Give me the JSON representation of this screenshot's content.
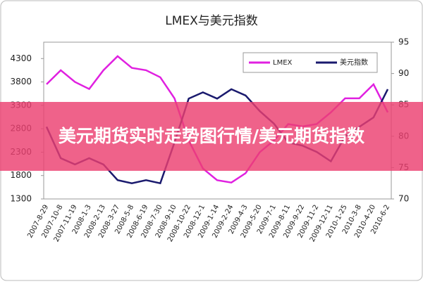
{
  "chart_data": {
    "type": "line",
    "title": "LMEX与美元指数",
    "overlay_text": "美元期货实时走势图行情/美元期货指数",
    "categories": [
      "2007-8-29",
      "2007-10-8",
      "2007-11-19",
      "2008-1-3",
      "2008-2-13",
      "2008-3-27",
      "2008-5-8",
      "2008-6-19",
      "2008-7-30",
      "2008-9-10",
      "2008-10-22",
      "2008-12-1",
      "2009-1-14",
      "2009-2-24",
      "2009-4-3",
      "2009-5-20",
      "2009-7-1",
      "2009-8-11",
      "2009-9-22",
      "2009-11-2",
      "2009-12-11",
      "2010-1-25",
      "2010-3-8",
      "2010-4-20",
      "2010-6-2"
    ],
    "series": [
      {
        "name": "LMEX",
        "color": "#e020e0",
        "values": [
          3750,
          4050,
          3800,
          3650,
          4050,
          4350,
          4100,
          4050,
          3900,
          3450,
          2550,
          1950,
          1700,
          1650,
          1850,
          2300,
          2550,
          2900,
          2850,
          2900,
          3150,
          3450,
          3450,
          3750,
          3150
        ]
      },
      {
        "name": "美元指数",
        "color": "#1a1a6e",
        "axis": "y2",
        "values": [
          81.5,
          76.5,
          75.5,
          76.5,
          75.5,
          73,
          72.5,
          73,
          72.5,
          79,
          86,
          87,
          86,
          87.5,
          86.5,
          84,
          82,
          79,
          78.5,
          77.5,
          76,
          80,
          81.5,
          83,
          87.5
        ]
      }
    ],
    "ylim": [
      1300,
      4650
    ],
    "yticks": [
      1300,
      1800,
      2300,
      2800,
      3300,
      3800,
      4300
    ],
    "y2lim": [
      70,
      95
    ],
    "y2ticks": [
      70,
      75,
      80,
      85,
      90,
      95
    ],
    "legend": "top-right"
  }
}
